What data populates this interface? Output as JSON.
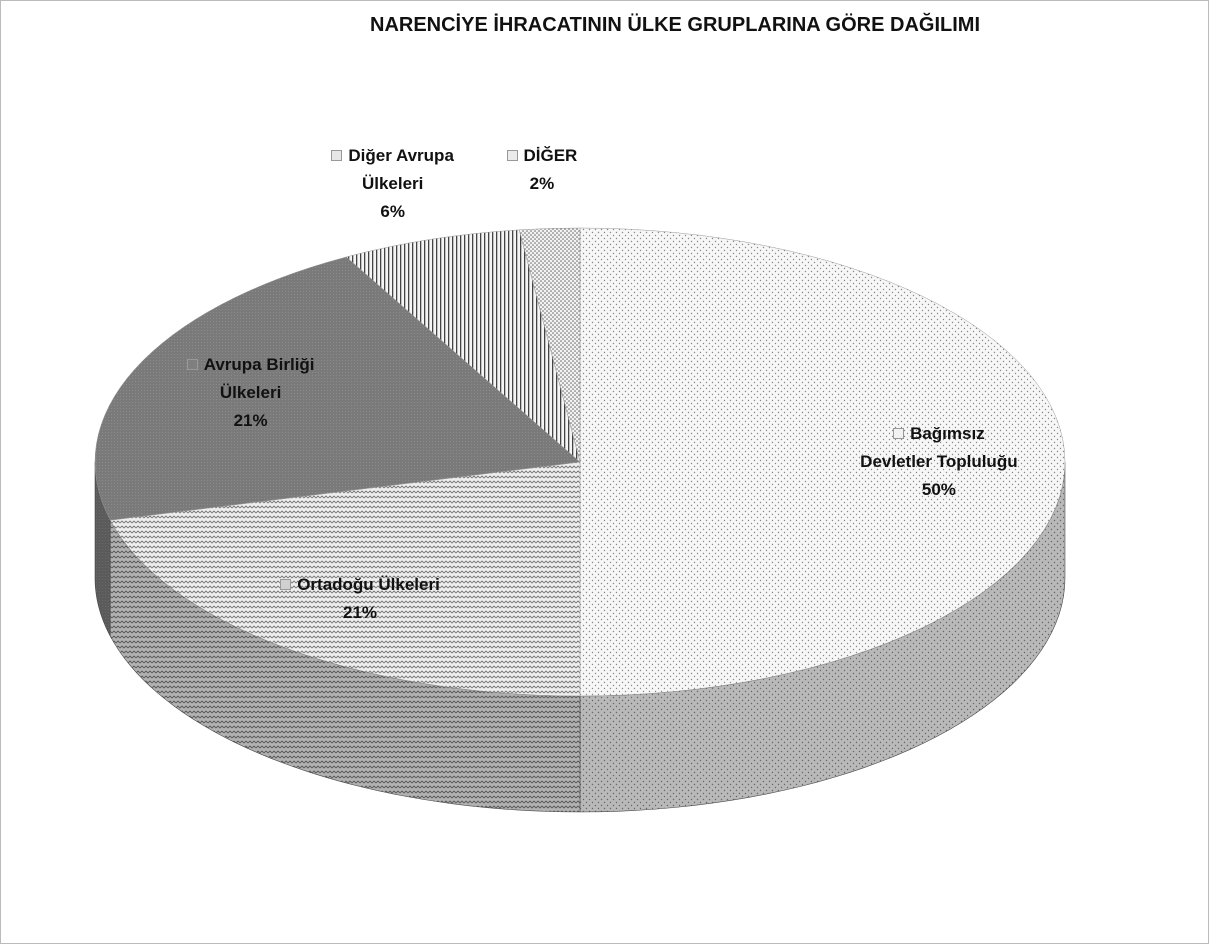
{
  "chart_data": {
    "type": "pie",
    "title": "NARENCİYE İHRACATININ ÜLKE GRUPLARINA GÖRE DAĞILIMI",
    "categories": [
      "Bağımsız Devletler Topluluğu",
      "Ortadoğu Ülkeleri",
      "Avrupa Birliği Ülkeleri",
      "Diğer Avrupa Ülkeleri",
      "DİĞER"
    ],
    "values": [
      50,
      21,
      21,
      6,
      2
    ],
    "value_labels": [
      "50%",
      "21%",
      "21%",
      "6%",
      "2%"
    ],
    "colors": [
      "#f2f2f2",
      "#d0d0d0",
      "#7f7f7f",
      "#e6e6e6",
      "#ebebeb"
    ]
  }
}
